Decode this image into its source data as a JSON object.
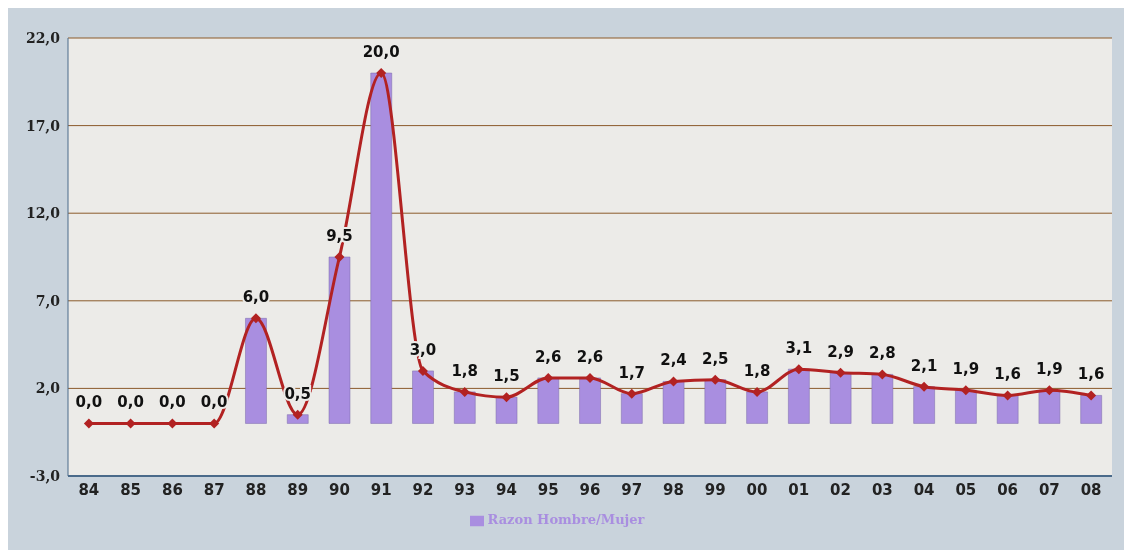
{
  "chart_data": {
    "type": "bar",
    "categories": [
      "84",
      "85",
      "86",
      "87",
      "88",
      "89",
      "90",
      "91",
      "92",
      "93",
      "94",
      "95",
      "96",
      "97",
      "98",
      "99",
      "00",
      "01",
      "02",
      "03",
      "04",
      "05",
      "06",
      "07",
      "08"
    ],
    "series": [
      {
        "name": "Razon Hombre/Mujer",
        "color": "#a98ee0",
        "values": [
          0,
          0,
          0,
          0,
          6,
          0.5,
          9.5,
          20,
          3,
          1.8,
          1.5,
          2.6,
          2.6,
          1.7,
          2.4,
          2.5,
          1.8,
          3.1,
          2.9,
          2.8,
          2.1,
          1.9,
          1.6,
          1.9,
          1.6
        ],
        "value_labels": [
          "0,0",
          "0,0",
          "0,0",
          "0,0",
          "6,0",
          "0,5",
          "9,5",
          "20,0",
          "3,0",
          "1,8",
          "1,5",
          "2,6",
          "2,6",
          "1,7",
          "2,4",
          "2,5",
          "1,8",
          "3,1",
          "2,9",
          "2,8",
          "2,1",
          "1,9",
          "1,6",
          "1,9",
          "1,6"
        ]
      },
      {
        "type": "line",
        "color": "#b22222",
        "marker": "diamond",
        "values": [
          0,
          0,
          0,
          0,
          6,
          0.5,
          9.5,
          20,
          3,
          1.8,
          1.5,
          2.6,
          2.6,
          1.7,
          2.4,
          2.5,
          1.8,
          3.1,
          2.9,
          2.8,
          2.1,
          1.9,
          1.6,
          1.9,
          1.6
        ]
      }
    ],
    "ylim": [
      -3,
      22
    ],
    "yticks": [
      {
        "value": -3,
        "label": "-3,0"
      },
      {
        "value": 2,
        "label": "2,0"
      },
      {
        "value": 7,
        "label": "7,0"
      },
      {
        "value": 12,
        "label": "12,0"
      },
      {
        "value": 17,
        "label": "17,0"
      },
      {
        "value": 22,
        "label": "22,0"
      }
    ],
    "grid": "y",
    "legend": "bottom"
  }
}
